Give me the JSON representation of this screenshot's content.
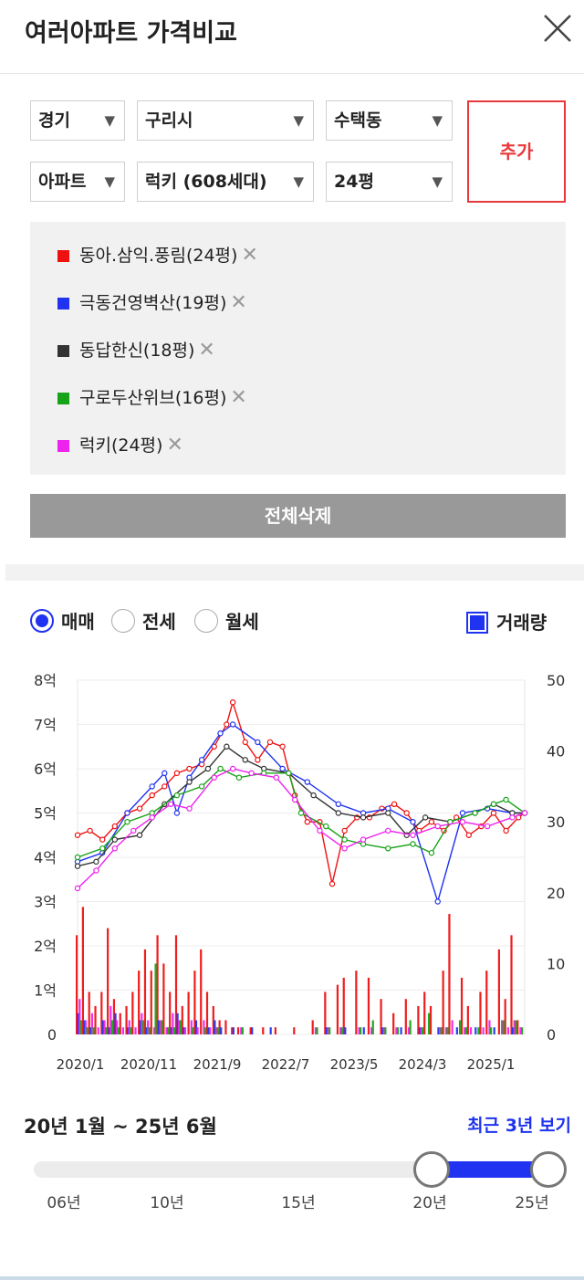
{
  "header": {
    "title": "여러아파트 가격비교"
  },
  "filters": {
    "row1": [
      "경기",
      "구리시",
      "수택동"
    ],
    "row2": [
      "아파트",
      "럭키 (608세대)",
      "24평"
    ],
    "add_label": "추가"
  },
  "compare_list": [
    {
      "name": "동아.삼익.풍림(24평)",
      "color": "#ee1111"
    },
    {
      "name": "극동건영벽산(19평)",
      "color": "#1f33f0"
    },
    {
      "name": "동답한신(18평)",
      "color": "#333333"
    },
    {
      "name": "구로두산위브(16평)",
      "color": "#17a317"
    },
    {
      "name": "럭키(24평)",
      "color": "#ee22ee"
    }
  ],
  "remove_symbol": "✕",
  "delete_all_label": "전체삭제",
  "tabs": {
    "sale": "매매",
    "jeonse": "전세",
    "monthly": "월세",
    "selected": "매매"
  },
  "volume_label": "거래량",
  "chart_data": {
    "type": "line",
    "y_left_ticks": [
      "8억",
      "7억",
      "6억",
      "5억",
      "4억",
      "3억",
      "2억",
      "1억",
      "0"
    ],
    "y_right_ticks": [
      "50",
      "40",
      "30",
      "20",
      "10",
      "0"
    ],
    "x_ticks": [
      "2020/1",
      "2020/11",
      "2021/9",
      "2022/7",
      "2023/5",
      "2024/3",
      "2025/1"
    ],
    "ylim_price": [
      0,
      8
    ],
    "ylim_volume": [
      0,
      50
    ],
    "series": [
      {
        "name": "동아.삼익.풍림(24평)",
        "color": "#ee1111",
        "points": [
          [
            0,
            4.5
          ],
          [
            2,
            4.6
          ],
          [
            4,
            4.4
          ],
          [
            6,
            4.7
          ],
          [
            8,
            5.0
          ],
          [
            10,
            5.1
          ],
          [
            12,
            5.4
          ],
          [
            14,
            5.6
          ],
          [
            16,
            5.9
          ],
          [
            18,
            6.0
          ],
          [
            20,
            6.1
          ],
          [
            22,
            6.5
          ],
          [
            24,
            7.0
          ],
          [
            25,
            7.5
          ],
          [
            27,
            6.6
          ],
          [
            29,
            6.2
          ],
          [
            31,
            6.6
          ],
          [
            33,
            6.5
          ],
          [
            35,
            5.4
          ],
          [
            37,
            4.8
          ],
          [
            39,
            4.8
          ],
          [
            41,
            3.4
          ],
          [
            43,
            4.6
          ],
          [
            45,
            4.9
          ],
          [
            47,
            4.9
          ],
          [
            49,
            5.1
          ],
          [
            51,
            5.2
          ],
          [
            53,
            5.0
          ],
          [
            55,
            4.6
          ],
          [
            57,
            4.8
          ],
          [
            59,
            4.6
          ],
          [
            61,
            4.9
          ],
          [
            63,
            4.5
          ],
          [
            65,
            4.7
          ],
          [
            67,
            5.0
          ],
          [
            69,
            4.6
          ],
          [
            71,
            4.9
          ],
          [
            72,
            5.0
          ]
        ]
      },
      {
        "name": "극동건영벽산(19평)",
        "color": "#1f33f0",
        "points": [
          [
            0,
            3.9
          ],
          [
            4,
            4.1
          ],
          [
            8,
            5.0
          ],
          [
            12,
            5.6
          ],
          [
            14,
            5.9
          ],
          [
            16,
            5.0
          ],
          [
            18,
            5.8
          ],
          [
            20,
            6.2
          ],
          [
            23,
            6.8
          ],
          [
            25,
            7.0
          ],
          [
            29,
            6.6
          ],
          [
            33,
            6.0
          ],
          [
            37,
            5.7
          ],
          [
            42,
            5.2
          ],
          [
            46,
            5.0
          ],
          [
            50,
            5.1
          ],
          [
            54,
            4.8
          ],
          [
            58,
            3.0
          ],
          [
            62,
            5.0
          ],
          [
            66,
            5.1
          ],
          [
            70,
            5.0
          ],
          [
            72,
            5.0
          ]
        ]
      },
      {
        "name": "동답한신(18평)",
        "color": "#333333",
        "points": [
          [
            0,
            3.8
          ],
          [
            3,
            3.9
          ],
          [
            6,
            4.4
          ],
          [
            10,
            4.5
          ],
          [
            14,
            5.2
          ],
          [
            18,
            5.7
          ],
          [
            21,
            6.0
          ],
          [
            24,
            6.5
          ],
          [
            27,
            6.2
          ],
          [
            30,
            6.0
          ],
          [
            34,
            5.9
          ],
          [
            38,
            5.4
          ],
          [
            42,
            5.0
          ],
          [
            46,
            4.9
          ],
          [
            50,
            5.0
          ],
          [
            53,
            4.5
          ],
          [
            56,
            4.9
          ],
          [
            60,
            4.8
          ],
          [
            64,
            5.0
          ],
          [
            67,
            5.2
          ],
          [
            70,
            5.0
          ],
          [
            72,
            5.0
          ]
        ]
      },
      {
        "name": "구로두산위브(16평)",
        "color": "#17a317",
        "points": [
          [
            0,
            4.0
          ],
          [
            4,
            4.2
          ],
          [
            8,
            4.8
          ],
          [
            12,
            5.0
          ],
          [
            16,
            5.4
          ],
          [
            20,
            5.6
          ],
          [
            23,
            6.0
          ],
          [
            26,
            5.8
          ],
          [
            30,
            5.9
          ],
          [
            34,
            5.9
          ],
          [
            36,
            5.0
          ],
          [
            40,
            4.7
          ],
          [
            43,
            4.4
          ],
          [
            46,
            4.3
          ],
          [
            50,
            4.2
          ],
          [
            54,
            4.3
          ],
          [
            57,
            4.1
          ],
          [
            60,
            4.8
          ],
          [
            64,
            5.0
          ],
          [
            67,
            5.2
          ],
          [
            69,
            5.3
          ],
          [
            72,
            5.0
          ]
        ]
      },
      {
        "name": "럭키(24평)",
        "color": "#ee22ee",
        "points": [
          [
            0,
            3.3
          ],
          [
            3,
            3.7
          ],
          [
            6,
            4.2
          ],
          [
            9,
            4.6
          ],
          [
            12,
            4.9
          ],
          [
            15,
            5.2
          ],
          [
            18,
            5.1
          ],
          [
            22,
            5.8
          ],
          [
            25,
            6.0
          ],
          [
            28,
            5.9
          ],
          [
            32,
            5.8
          ],
          [
            35,
            5.3
          ],
          [
            39,
            4.6
          ],
          [
            43,
            4.2
          ],
          [
            46,
            4.4
          ],
          [
            50,
            4.6
          ],
          [
            54,
            4.5
          ],
          [
            58,
            4.7
          ],
          [
            62,
            4.8
          ],
          [
            66,
            4.7
          ],
          [
            70,
            4.9
          ],
          [
            72,
            5.0
          ]
        ]
      }
    ],
    "volumes": [
      {
        "color": "#ee1111",
        "values": [
          14,
          18,
          6,
          4,
          6,
          15,
          5,
          3,
          4,
          6,
          9,
          12,
          9,
          14,
          10,
          6,
          14,
          4,
          6,
          9,
          12,
          6,
          4,
          2,
          2,
          1,
          1,
          0,
          1,
          0,
          1,
          0,
          1,
          0,
          0,
          1,
          0,
          0,
          2,
          0,
          6,
          0,
          7,
          8,
          0,
          9,
          0,
          8,
          0,
          5,
          0,
          3,
          0,
          5,
          0,
          4,
          6,
          4,
          0,
          9,
          17,
          0,
          8,
          4,
          0,
          6,
          9,
          0,
          12,
          5,
          14,
          2,
          0
        ]
      },
      {
        "color": "#1f33f0",
        "values": [
          3,
          2,
          1,
          0,
          2,
          1,
          3,
          0,
          1,
          0,
          2,
          1,
          0,
          2,
          0,
          1,
          3,
          1,
          0,
          2,
          0,
          1,
          2,
          1,
          0,
          1,
          0,
          0,
          1,
          0,
          0,
          1,
          0,
          0,
          0,
          0,
          0,
          0,
          0,
          0,
          1,
          0,
          0,
          1,
          0,
          0,
          1,
          0,
          0,
          1,
          0,
          0,
          1,
          0,
          0,
          1,
          0,
          0,
          1,
          0,
          0,
          1,
          0,
          0,
          1,
          0,
          0,
          1,
          0,
          0,
          1,
          0,
          0
        ]
      },
      {
        "color": "#ee22ee",
        "values": [
          5,
          2,
          3,
          1,
          2,
          4,
          2,
          1,
          2,
          1,
          3,
          2,
          1,
          2,
          1,
          3,
          2,
          1,
          2,
          1,
          2,
          1,
          1,
          0,
          0,
          0,
          1,
          0,
          0,
          0,
          0,
          0,
          0,
          0,
          0,
          0,
          0,
          0,
          1,
          0,
          1,
          0,
          1,
          0,
          0,
          1,
          0,
          1,
          0,
          1,
          0,
          1,
          0,
          1,
          0,
          1,
          0,
          0,
          1,
          1,
          2,
          0,
          1,
          1,
          0,
          1,
          2,
          0,
          2,
          1,
          2,
          1,
          0
        ]
      },
      {
        "color": "#17a317",
        "values": [
          2,
          1,
          1,
          0,
          1,
          2,
          1,
          0,
          1,
          0,
          2,
          1,
          10,
          2,
          1,
          1,
          2,
          0,
          1,
          0,
          1,
          0,
          1,
          0,
          0,
          0,
          1,
          0,
          0,
          0,
          0,
          0,
          0,
          0,
          0,
          0,
          0,
          0,
          1,
          0,
          1,
          0,
          1,
          0,
          0,
          1,
          0,
          2,
          0,
          1,
          0,
          1,
          0,
          2,
          0,
          1,
          3,
          0,
          1,
          1,
          0,
          2,
          1,
          0,
          1,
          0,
          1,
          0,
          2,
          0,
          2,
          1,
          0
        ]
      }
    ]
  },
  "range": {
    "text": "20년 1월 ~ 25년 6월",
    "recent_label": "최근 3년 보기"
  },
  "slider": {
    "ticks": [
      "06년",
      "10년",
      "15년",
      "20년",
      "25년"
    ],
    "start": "20년",
    "end": "25년"
  }
}
